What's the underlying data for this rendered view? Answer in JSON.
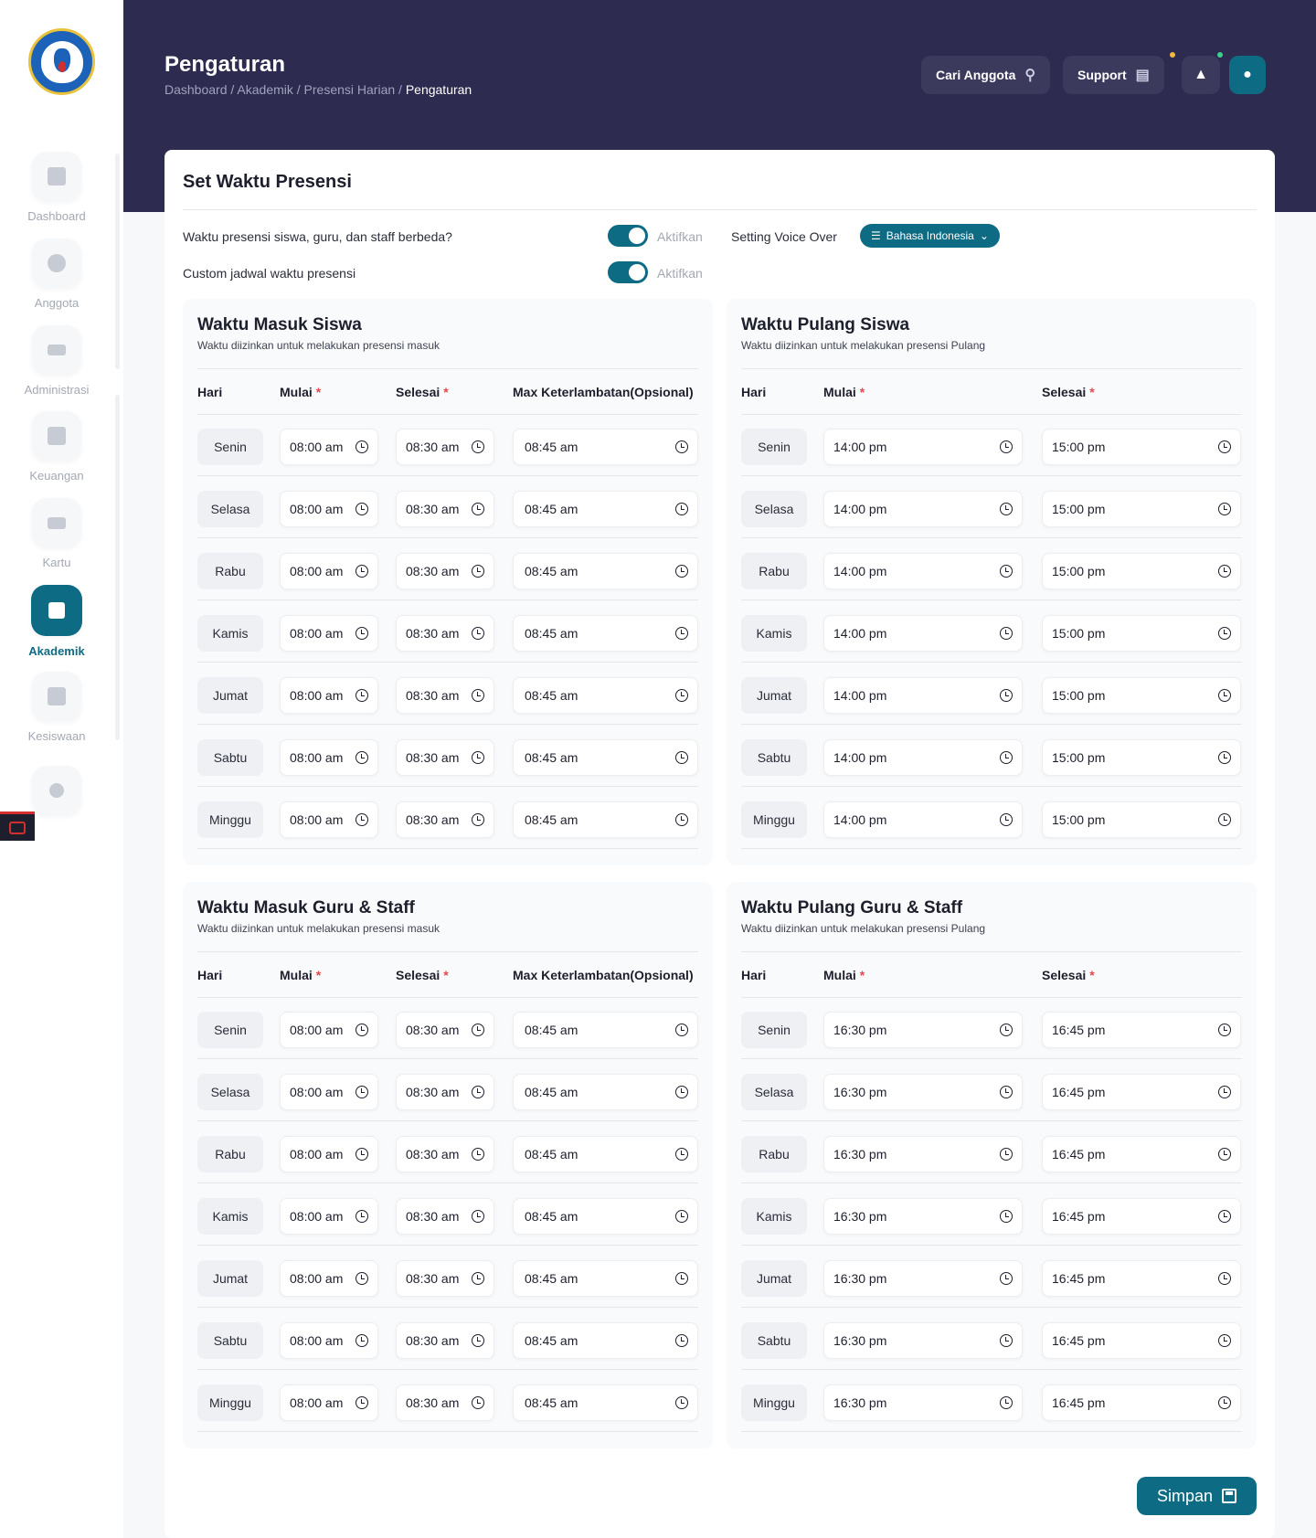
{
  "sidebar": {
    "items": [
      {
        "label": "Dashboard",
        "icon": "grid-icon",
        "active": false
      },
      {
        "label": "Anggota",
        "icon": "users-icon",
        "active": false
      },
      {
        "label": "Administrasi",
        "icon": "layers-icon",
        "active": false
      },
      {
        "label": "Keuangan",
        "icon": "wallet-icon",
        "active": false
      },
      {
        "label": "Kartu",
        "icon": "card-icon",
        "active": false
      },
      {
        "label": "Akademik",
        "icon": "book-icon",
        "active": true
      },
      {
        "label": "Kesiswaan",
        "icon": "building-icon",
        "active": false
      }
    ],
    "settings_icon": "gear-icon"
  },
  "header": {
    "title": "Pengaturan",
    "breadcrumb": [
      "Dashboard",
      "Akademik",
      "Presensi Harian"
    ],
    "breadcrumb_current": "Pengaturan",
    "search_label": "Cari Anggota",
    "support_label": "Support"
  },
  "card": {
    "title": "Set Waktu Presensi",
    "settings": {
      "different_label": "Waktu presensi siswa, guru, dan staff berbeda?",
      "custom_label": "Custom jadwal waktu presensi",
      "toggle_text": "Aktifkan",
      "voice_label": "Setting Voice Over",
      "voice_value": "Bahasa Indonesia"
    },
    "save_label": "Simpan"
  },
  "colors": {
    "accent": "#0e6b84",
    "header_bg": "#2d2b4f",
    "required": "#e5484d"
  },
  "sections": [
    {
      "title": "Waktu Masuk Siswa",
      "subtitle": "Waktu diizinkan untuk melakukan presensi masuk",
      "headers": {
        "hari": "Hari",
        "mulai": "Mulai",
        "selesai": "Selesai",
        "max": "Max Keterlambatan(Opsional)"
      },
      "rows": [
        {
          "day": "Senin",
          "mulai": "08:00 am",
          "selesai": "08:30 am",
          "max": "08:45 am"
        },
        {
          "day": "Selasa",
          "mulai": "08:00 am",
          "selesai": "08:30 am",
          "max": "08:45 am"
        },
        {
          "day": "Rabu",
          "mulai": "08:00 am",
          "selesai": "08:30 am",
          "max": "08:45 am"
        },
        {
          "day": "Kamis",
          "mulai": "08:00 am",
          "selesai": "08:30 am",
          "max": "08:45 am"
        },
        {
          "day": "Jumat",
          "mulai": "08:00 am",
          "selesai": "08:30 am",
          "max": "08:45 am"
        },
        {
          "day": "Sabtu",
          "mulai": "08:00 am",
          "selesai": "08:30 am",
          "max": "08:45 am"
        },
        {
          "day": "Minggu",
          "mulai": "08:00 am",
          "selesai": "08:30 am",
          "max": "08:45 am"
        }
      ]
    },
    {
      "title": "Waktu Pulang Siswa",
      "subtitle": "Waktu diizinkan untuk melakukan presensi Pulang",
      "headers": {
        "hari": "Hari",
        "mulai": "Mulai",
        "selesai": "Selesai"
      },
      "rows": [
        {
          "day": "Senin",
          "mulai": "14:00 pm",
          "selesai": "15:00 pm"
        },
        {
          "day": "Selasa",
          "mulai": "14:00 pm",
          "selesai": "15:00 pm"
        },
        {
          "day": "Rabu",
          "mulai": "14:00 pm",
          "selesai": "15:00 pm"
        },
        {
          "day": "Kamis",
          "mulai": "14:00 pm",
          "selesai": "15:00 pm"
        },
        {
          "day": "Jumat",
          "mulai": "14:00 pm",
          "selesai": "15:00 pm"
        },
        {
          "day": "Sabtu",
          "mulai": "14:00 pm",
          "selesai": "15:00 pm"
        },
        {
          "day": "Minggu",
          "mulai": "14:00 pm",
          "selesai": "15:00 pm"
        }
      ]
    },
    {
      "title": "Waktu Masuk Guru & Staff",
      "subtitle": "Waktu diizinkan untuk melakukan presensi masuk",
      "headers": {
        "hari": "Hari",
        "mulai": "Mulai",
        "selesai": "Selesai",
        "max": "Max Keterlambatan(Opsional)"
      },
      "rows": [
        {
          "day": "Senin",
          "mulai": "08:00 am",
          "selesai": "08:30 am",
          "max": "08:45 am"
        },
        {
          "day": "Selasa",
          "mulai": "08:00 am",
          "selesai": "08:30 am",
          "max": "08:45 am"
        },
        {
          "day": "Rabu",
          "mulai": "08:00 am",
          "selesai": "08:30 am",
          "max": "08:45 am"
        },
        {
          "day": "Kamis",
          "mulai": "08:00 am",
          "selesai": "08:30 am",
          "max": "08:45 am"
        },
        {
          "day": "Jumat",
          "mulai": "08:00 am",
          "selesai": "08:30 am",
          "max": "08:45 am"
        },
        {
          "day": "Sabtu",
          "mulai": "08:00 am",
          "selesai": "08:30 am",
          "max": "08:45 am"
        },
        {
          "day": "Minggu",
          "mulai": "08:00 am",
          "selesai": "08:30 am",
          "max": "08:45 am"
        }
      ]
    },
    {
      "title": "Waktu Pulang Guru & Staff",
      "subtitle": "Waktu diizinkan untuk melakukan presensi Pulang",
      "headers": {
        "hari": "Hari",
        "mulai": "Mulai",
        "selesai": "Selesai"
      },
      "rows": [
        {
          "day": "Senin",
          "mulai": "16:30 pm",
          "selesai": "16:45 pm"
        },
        {
          "day": "Selasa",
          "mulai": "16:30 pm",
          "selesai": "16:45 pm"
        },
        {
          "day": "Rabu",
          "mulai": "16:30 pm",
          "selesai": "16:45 pm"
        },
        {
          "day": "Kamis",
          "mulai": "16:30 pm",
          "selesai": "16:45 pm"
        },
        {
          "day": "Jumat",
          "mulai": "16:30 pm",
          "selesai": "16:45 pm"
        },
        {
          "day": "Sabtu",
          "mulai": "16:30 pm",
          "selesai": "16:45 pm"
        },
        {
          "day": "Minggu",
          "mulai": "16:30 pm",
          "selesai": "16:45 pm"
        }
      ]
    }
  ]
}
